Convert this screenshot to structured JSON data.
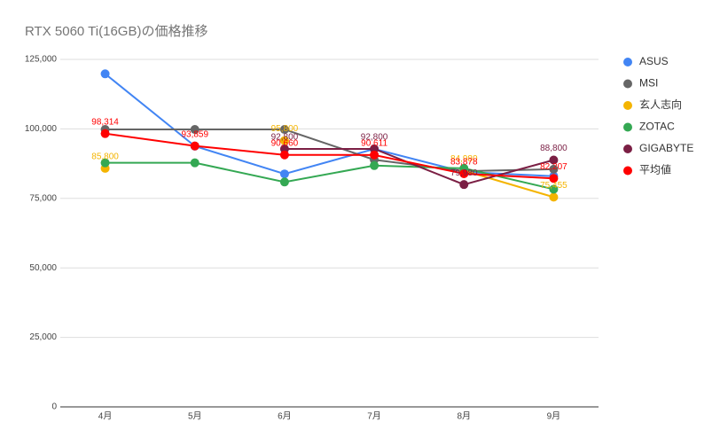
{
  "chart_data": {
    "type": "line",
    "title": "RTX 5060 Ti(16GB)の価格推移",
    "categories": [
      "4月",
      "5月",
      "6月",
      "7月",
      "8月",
      "9月"
    ],
    "ylim": [
      0,
      125000
    ],
    "yticks": [
      0,
      {
        "value": 25000,
        "label": "25,000"
      },
      {
        "value": 50000,
        "label": "50,000"
      },
      {
        "value": 75000,
        "label": "75,000"
      },
      {
        "value": 100000,
        "label": "100,000"
      },
      {
        "value": 125000,
        "label": "125,000"
      }
    ],
    "grid": true,
    "legend": "right",
    "series": [
      {
        "name": "ASUS",
        "color": "#4285f4",
        "values": [
          119800,
          93800,
          83800,
          92800,
          84500,
          83000
        ]
      },
      {
        "name": "MSI",
        "color": "#666666",
        "values": [
          99800,
          99800,
          99800,
          88900,
          84800,
          85500
        ]
      },
      {
        "name": "玄人志向",
        "color": "#f4b400",
        "values": [
          85800,
          null,
          95800,
          null,
          84980,
          75455
        ],
        "value_labels": [
          "85,800",
          null,
          "95,800",
          null,
          "84,980",
          "75,455"
        ]
      },
      {
        "name": "ZOTAC",
        "color": "#34a853",
        "values": [
          87800,
          87800,
          80900,
          86800,
          85800,
          78300
        ]
      },
      {
        "name": "GIGABYTE",
        "color": "#7b1f44",
        "values": [
          null,
          null,
          92800,
          92800,
          79980,
          88800
        ],
        "value_labels": [
          null,
          null,
          "92,800",
          "92,800",
          "79,980",
          "88,800"
        ]
      },
      {
        "name": "平均値",
        "color": "#ff0000",
        "values": [
          98314,
          93859,
          90660,
          90611,
          83878,
          82207
        ],
        "value_labels": [
          "98,314",
          "93,859",
          "90,660",
          "90,611",
          "83,878",
          "82,207"
        ]
      }
    ]
  }
}
